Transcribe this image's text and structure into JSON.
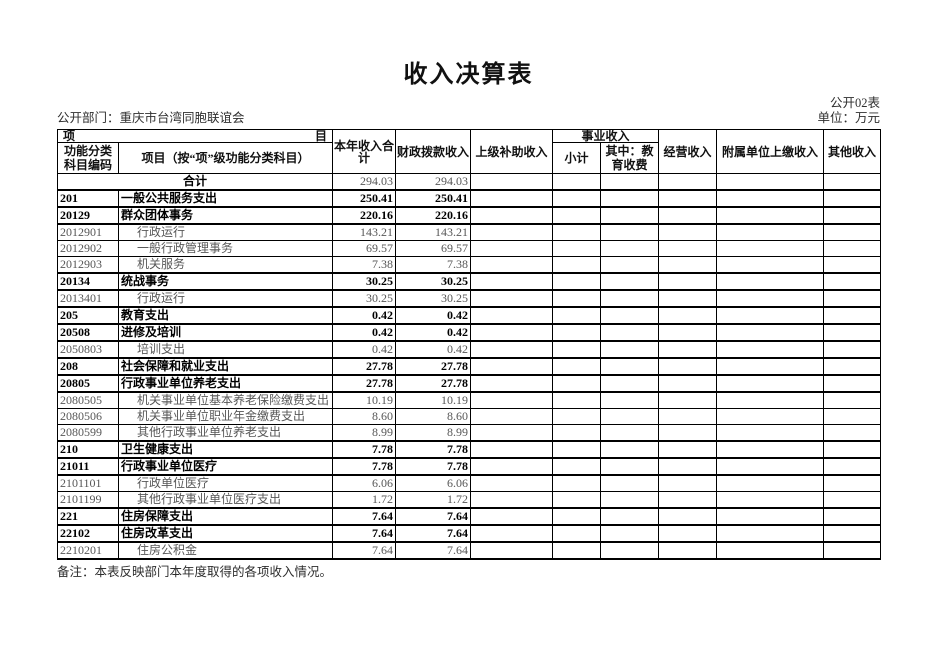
{
  "page": {
    "title": "收入决算表",
    "table_code": "公开02表",
    "department_label": "公开部门：重庆市台湾同胞联谊会",
    "unit_label": "单位：万元",
    "note": "备注：本表反映部门本年度取得的各项收入情况。"
  },
  "table": {
    "header": {
      "item_left": "项",
      "item_right": "目",
      "col_code": "功能分类科目编码",
      "col_project": "项目（按“项”级功能分类科目）",
      "col_year_total": "本年收入合计",
      "col_fiscal": "财政拨款收入",
      "col_superior": "上级补助收入",
      "col_business": "事业收入",
      "col_subtotal": "小计",
      "col_education": "其中：教育收费",
      "col_operating": "经营收入",
      "col_affiliated": "附属单位上缴收入",
      "col_other": "其他收入"
    },
    "rows": [
      {
        "code": "",
        "name": "合计",
        "total": "294.03",
        "fiscal": "294.03",
        "level": "total"
      },
      {
        "code": "201",
        "name": "一般公共服务支出",
        "total": "250.41",
        "fiscal": "250.41",
        "level": "bold"
      },
      {
        "code": "20129",
        "name": "群众团体事务",
        "total": "220.16",
        "fiscal": "220.16",
        "level": "bold"
      },
      {
        "code": "2012901",
        "name": "行政运行",
        "total": "143.21",
        "fiscal": "143.21",
        "level": "detail"
      },
      {
        "code": "2012902",
        "name": "一般行政管理事务",
        "total": "69.57",
        "fiscal": "69.57",
        "level": "detail"
      },
      {
        "code": "2012903",
        "name": "机关服务",
        "total": "7.38",
        "fiscal": "7.38",
        "level": "detail"
      },
      {
        "code": "20134",
        "name": "统战事务",
        "total": "30.25",
        "fiscal": "30.25",
        "level": "bold"
      },
      {
        "code": "2013401",
        "name": "行政运行",
        "total": "30.25",
        "fiscal": "30.25",
        "level": "detail"
      },
      {
        "code": "205",
        "name": "教育支出",
        "total": "0.42",
        "fiscal": "0.42",
        "level": "bold"
      },
      {
        "code": "20508",
        "name": "进修及培训",
        "total": "0.42",
        "fiscal": "0.42",
        "level": "bold"
      },
      {
        "code": "2050803",
        "name": "培训支出",
        "total": "0.42",
        "fiscal": "0.42",
        "level": "detail"
      },
      {
        "code": "208",
        "name": "社会保障和就业支出",
        "total": "27.78",
        "fiscal": "27.78",
        "level": "bold"
      },
      {
        "code": "20805",
        "name": "行政事业单位养老支出",
        "total": "27.78",
        "fiscal": "27.78",
        "level": "bold"
      },
      {
        "code": "2080505",
        "name": "机关事业单位基本养老保险缴费支出",
        "total": "10.19",
        "fiscal": "10.19",
        "level": "detail"
      },
      {
        "code": "2080506",
        "name": "机关事业单位职业年金缴费支出",
        "total": "8.60",
        "fiscal": "8.60",
        "level": "detail"
      },
      {
        "code": "2080599",
        "name": "其他行政事业单位养老支出",
        "total": "8.99",
        "fiscal": "8.99",
        "level": "detail"
      },
      {
        "code": "210",
        "name": "卫生健康支出",
        "total": "7.78",
        "fiscal": "7.78",
        "level": "bold"
      },
      {
        "code": "21011",
        "name": "行政事业单位医疗",
        "total": "7.78",
        "fiscal": "7.78",
        "level": "bold"
      },
      {
        "code": "2101101",
        "name": "行政单位医疗",
        "total": "6.06",
        "fiscal": "6.06",
        "level": "detail"
      },
      {
        "code": "2101199",
        "name": "其他行政事业单位医疗支出",
        "total": "1.72",
        "fiscal": "1.72",
        "level": "detail"
      },
      {
        "code": "221",
        "name": "住房保障支出",
        "total": "7.64",
        "fiscal": "7.64",
        "level": "bold"
      },
      {
        "code": "22102",
        "name": "住房改革支出",
        "total": "7.64",
        "fiscal": "7.64",
        "level": "bold"
      },
      {
        "code": "2210201",
        "name": "住房公积金",
        "total": "7.64",
        "fiscal": "7.64",
        "level": "detail"
      }
    ]
  }
}
